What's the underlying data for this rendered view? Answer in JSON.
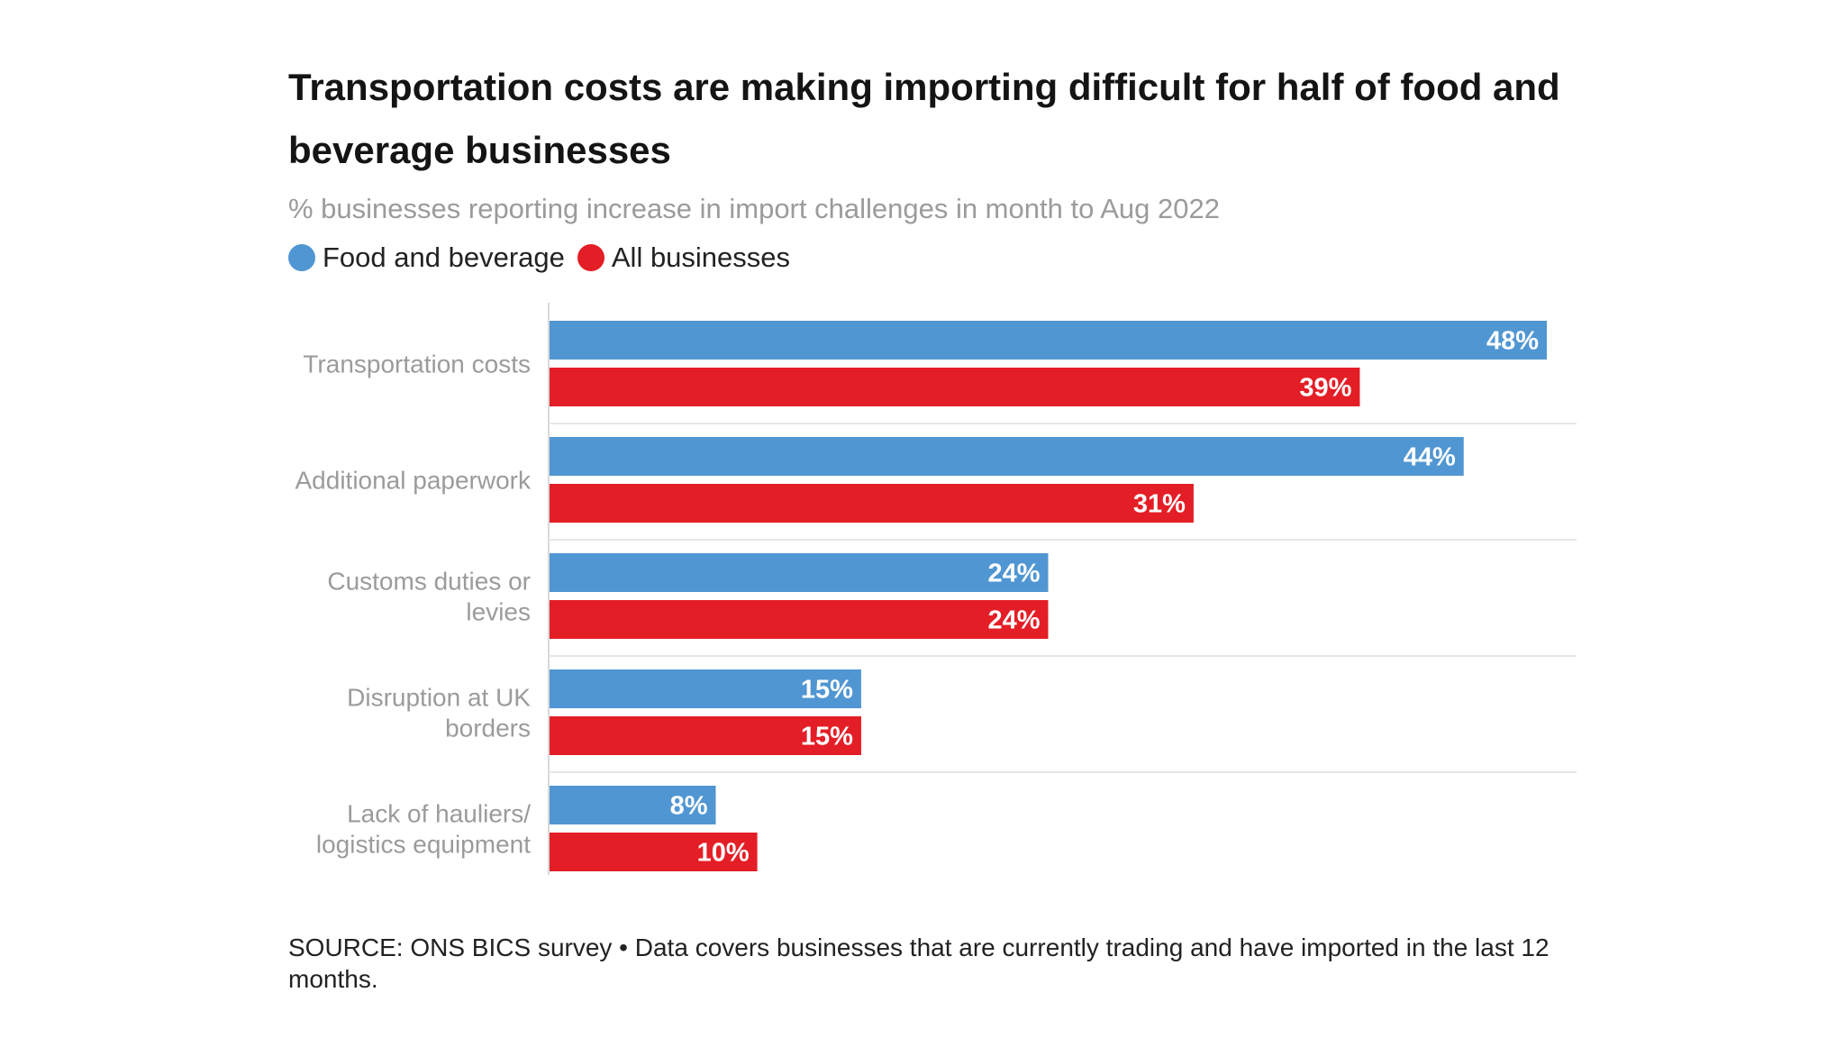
{
  "title": "Transportation costs are making importing difficult for half of food and beverage businesses",
  "subtitle": "% businesses reporting increase in import challenges in month to Aug 2022",
  "legend": [
    {
      "label": "Food and beverage",
      "color": "#5096d2"
    },
    {
      "label": "All businesses",
      "color": "#e41e26"
    }
  ],
  "chart_data": {
    "type": "bar",
    "orientation": "horizontal",
    "title": "Transportation costs are making importing difficult for half of food and beverage businesses",
    "subtitle": "% businesses reporting increase in import challenges in month to Aug 2022",
    "categories": [
      [
        "Transportation costs"
      ],
      [
        "Additional paperwork"
      ],
      [
        "Customs duties or",
        "levies"
      ],
      [
        "Disruption at UK",
        "borders"
      ],
      [
        "Lack of hauliers/",
        "logistics equipment"
      ]
    ],
    "series": [
      {
        "name": "Food and beverage",
        "color": "#5096d2",
        "values": [
          48,
          44,
          24,
          15,
          8
        ],
        "labels": [
          "48%",
          "44%",
          "24%",
          "15%",
          "8%"
        ]
      },
      {
        "name": "All businesses",
        "color": "#e41e26",
        "values": [
          39,
          31,
          24,
          15,
          10
        ],
        "labels": [
          "39%",
          "31%",
          "24%",
          "15%",
          "10%"
        ]
      }
    ],
    "xlim": [
      0,
      50
    ],
    "grid": false,
    "legend_position": "top-left"
  },
  "source": "SOURCE: ONS BICS survey • Data covers businesses that are currently trading and have imported in the last 12 months."
}
